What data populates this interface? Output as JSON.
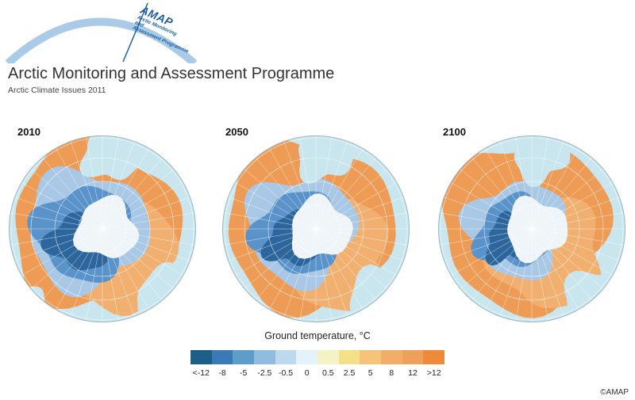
{
  "logo": {
    "name": "AMAP",
    "line1": "Arctic Monitoring",
    "line2": "and",
    "line3": "Assessment Programme",
    "color": "#1f5fa0",
    "arc_color": "#a9cbe8"
  },
  "header": {
    "org_title": "Arctic Monitoring and Assessment Programme",
    "report_title": "Arctic Climate Issues 2011"
  },
  "maps": [
    {
      "year": "2010",
      "warm_level": 0.2
    },
    {
      "year": "2050",
      "warm_level": 0.5
    },
    {
      "year": "2100",
      "warm_level": 0.8
    }
  ],
  "legend": {
    "title": "Ground temperature, °C",
    "labels": [
      "<-12",
      "-8",
      "-5",
      "-2.5",
      "-0.5",
      "0",
      "0.5",
      "2.5",
      "5",
      "8",
      "12",
      ">12"
    ],
    "colors": [
      "#1e5f87",
      "#3a7ab8",
      "#5e9cc9",
      "#8fbcdf",
      "#bcd9ee",
      "#e4f3fa",
      "#f4f3c5",
      "#f5e08a",
      "#f5c37a",
      "#f2ad68",
      "#efa05a",
      "#ee8a3a"
    ]
  },
  "colors": {
    "ocean": "#c9e6ee",
    "land_warm": "#ee9b55",
    "land_warm2": "#f2b070",
    "cold_deep": "#2c669c",
    "cold_mid": "#5a93c9",
    "cold_light": "#a8c8e6",
    "ice": "#eef4f8",
    "grid": "#ffffff"
  },
  "copyright": "©AMAP"
}
